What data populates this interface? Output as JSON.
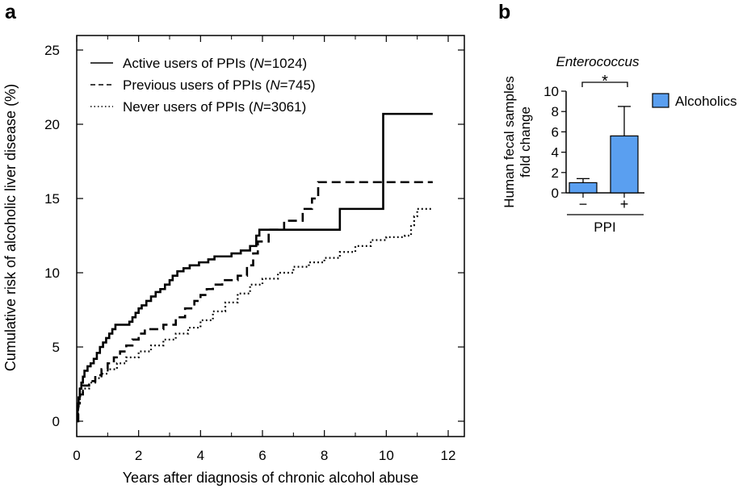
{
  "chart_data": [
    {
      "panel": "a",
      "type": "line",
      "step": true,
      "xlabel": "Years after diagnosis of chronic alcohol abuse",
      "ylabel": "Cumulative risk of alcoholic liver disease (%)",
      "xlim": [
        0,
        12
      ],
      "ylim": [
        0,
        25
      ],
      "xticks": [
        0,
        2,
        4,
        6,
        8,
        10,
        12
      ],
      "yticks": [
        0,
        5,
        10,
        15,
        20,
        25
      ],
      "grid": false,
      "legend_position": "top-left",
      "series": [
        {
          "name": "Active users of PPIs",
          "n": "1024",
          "style": "solid",
          "points": [
            [
              0,
              0
            ],
            [
              0.03,
              1.0
            ],
            [
              0.06,
              1.6
            ],
            [
              0.1,
              2.2
            ],
            [
              0.15,
              2.6
            ],
            [
              0.2,
              3.0
            ],
            [
              0.25,
              3.4
            ],
            [
              0.35,
              3.7
            ],
            [
              0.45,
              3.9
            ],
            [
              0.55,
              4.2
            ],
            [
              0.65,
              4.6
            ],
            [
              0.75,
              5.0
            ],
            [
              0.85,
              5.3
            ],
            [
              0.95,
              5.6
            ],
            [
              1.05,
              5.9
            ],
            [
              1.15,
              6.2
            ],
            [
              1.25,
              6.5
            ],
            [
              1.7,
              6.7
            ],
            [
              1.8,
              7.0
            ],
            [
              1.9,
              7.3
            ],
            [
              2.0,
              7.6
            ],
            [
              2.1,
              7.8
            ],
            [
              2.25,
              8.1
            ],
            [
              2.4,
              8.4
            ],
            [
              2.55,
              8.7
            ],
            [
              2.7,
              8.9
            ],
            [
              2.85,
              9.2
            ],
            [
              3.0,
              9.5
            ],
            [
              3.1,
              9.8
            ],
            [
              3.25,
              10.1
            ],
            [
              3.45,
              10.3
            ],
            [
              3.65,
              10.5
            ],
            [
              3.95,
              10.7
            ],
            [
              4.25,
              10.9
            ],
            [
              4.45,
              11.1
            ],
            [
              5.0,
              11.3
            ],
            [
              5.3,
              11.5
            ],
            [
              5.6,
              11.8
            ],
            [
              5.8,
              12.5
            ],
            [
              5.9,
              12.9
            ],
            [
              8.5,
              14.3
            ],
            [
              9.9,
              20.7
            ],
            [
              11.5,
              20.7
            ]
          ]
        },
        {
          "name": "Previous users of PPIs",
          "n": "745",
          "style": "dashed",
          "points": [
            [
              0,
              0
            ],
            [
              0.05,
              1.2
            ],
            [
              0.1,
              1.8
            ],
            [
              0.2,
              2.4
            ],
            [
              0.4,
              2.7
            ],
            [
              0.6,
              3.1
            ],
            [
              0.8,
              3.5
            ],
            [
              1.0,
              3.9
            ],
            [
              1.2,
              4.3
            ],
            [
              1.4,
              4.7
            ],
            [
              1.6,
              5.1
            ],
            [
              1.8,
              5.5
            ],
            [
              2.0,
              5.9
            ],
            [
              2.2,
              6.2
            ],
            [
              2.8,
              6.5
            ],
            [
              3.2,
              7.0
            ],
            [
              3.5,
              7.6
            ],
            [
              3.8,
              8.1
            ],
            [
              4.0,
              8.5
            ],
            [
              4.2,
              8.9
            ],
            [
              4.4,
              9.2
            ],
            [
              4.7,
              9.5
            ],
            [
              5.2,
              9.8
            ],
            [
              5.5,
              10.5
            ],
            [
              5.7,
              11.3
            ],
            [
              5.85,
              12.1
            ],
            [
              6.2,
              12.9
            ],
            [
              6.7,
              13.5
            ],
            [
              7.3,
              14.3
            ],
            [
              7.6,
              15.0
            ],
            [
              7.8,
              16.1
            ],
            [
              11.5,
              16.1
            ]
          ]
        },
        {
          "name": "Never users of PPIs",
          "n": "3061",
          "style": "dotted",
          "points": [
            [
              0,
              0
            ],
            [
              0.05,
              1.1
            ],
            [
              0.1,
              1.7
            ],
            [
              0.2,
              2.2
            ],
            [
              0.4,
              2.6
            ],
            [
              0.6,
              2.9
            ],
            [
              0.8,
              3.2
            ],
            [
              1.0,
              3.5
            ],
            [
              1.3,
              3.9
            ],
            [
              1.6,
              4.3
            ],
            [
              2.0,
              4.7
            ],
            [
              2.4,
              5.1
            ],
            [
              2.8,
              5.5
            ],
            [
              3.2,
              5.9
            ],
            [
              3.6,
              6.3
            ],
            [
              4.0,
              6.8
            ],
            [
              4.4,
              7.4
            ],
            [
              4.8,
              8.0
            ],
            [
              5.2,
              8.6
            ],
            [
              5.6,
              9.2
            ],
            [
              6.0,
              9.6
            ],
            [
              6.5,
              10.0
            ],
            [
              7.0,
              10.4
            ],
            [
              7.5,
              10.7
            ],
            [
              8.0,
              11.0
            ],
            [
              8.5,
              11.4
            ],
            [
              9.0,
              11.8
            ],
            [
              9.5,
              12.2
            ],
            [
              10.0,
              12.4
            ],
            [
              10.6,
              12.5
            ],
            [
              10.8,
              13.2
            ],
            [
              10.9,
              13.8
            ],
            [
              11.0,
              14.3
            ],
            [
              11.5,
              14.3
            ]
          ]
        }
      ]
    },
    {
      "panel": "b",
      "type": "bar",
      "title": "Enterococcus",
      "ylabel_lines": [
        "Human fecal samples",
        "fold change"
      ],
      "ylim": [
        0,
        10
      ],
      "yticks": [
        0,
        2,
        4,
        6,
        8,
        10
      ],
      "categories": [
        "−",
        "+"
      ],
      "group_label": "PPI",
      "values": [
        1.0,
        5.6
      ],
      "errors": [
        0.4,
        2.9
      ],
      "significance": "*",
      "series_name": "Alcoholics",
      "color": "#5a9ff0",
      "legend_position": "right"
    }
  ],
  "panels": {
    "a": {
      "label": "a",
      "legend": [
        {
          "prefix": "Active users of PPIs (",
          "n_symbol": "N",
          "n_value": "=1024)"
        },
        {
          "prefix": "Previous users of PPIs (",
          "n_symbol": "N",
          "n_value": "=745)"
        },
        {
          "prefix": "Never users of PPIs (",
          "n_symbol": "N",
          "n_value": "=3061)"
        }
      ]
    },
    "b": {
      "label": "b"
    }
  }
}
